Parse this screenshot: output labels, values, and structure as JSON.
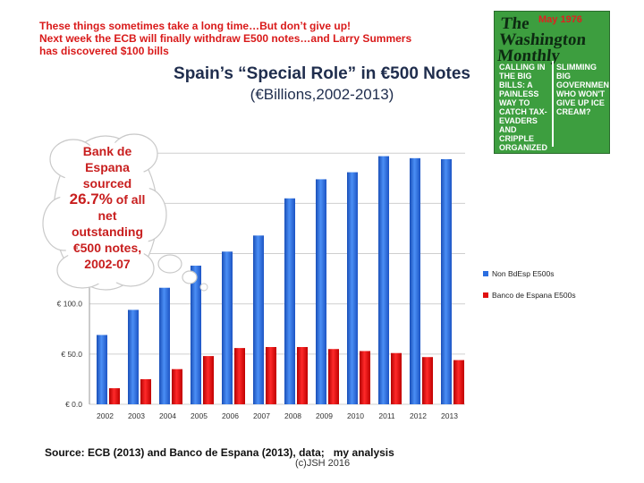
{
  "note": {
    "line1": "These things sometimes take a long time…But don’t give up!",
    "line2": "Next week the ECB will finally withdraw E500 notes…and Larry Summers",
    "line3": "has discovered $100 bills"
  },
  "magazine": {
    "title_line1": "The",
    "title_line2": "Washington",
    "title_line3": "Monthly",
    "date": "May 1976",
    "left_text": "Calling in the big bills: a painless way to catch tax-evaders and cripple organized crime",
    "right_text": "Slimming big government. Who won't give up ice cream?"
  },
  "callout": {
    "line1": "Bank de",
    "line2": "Espana",
    "line3": "sourced",
    "highlight": "26.7%",
    "line4": "of all",
    "line5": "net",
    "line6": "outstanding",
    "line7": "€500 notes,",
    "line8": "2002-07"
  },
  "source": "Source: ECB (2013) and Banco de Espana (2013), data;   my analysis",
  "copyright": "(c)JSH 2016",
  "colors": {
    "blue": "#2b6ee0",
    "red": "#e01010",
    "note_red": "#d91a1a"
  },
  "chart_data": {
    "type": "bar",
    "title": "Spain’s “Special Role” in €500 Notes",
    "subtitle": "(€Billions,2002-2013)",
    "categories": [
      "2002",
      "2003",
      "2004",
      "2005",
      "2006",
      "2007",
      "2008",
      "2009",
      "2010",
      "2011",
      "2012",
      "2013"
    ],
    "series": [
      {
        "name": "Non BdEsp E500s",
        "color": "#2b6ee0",
        "values": [
          69,
          94,
          116,
          138,
          152,
          168,
          205,
          224,
          231,
          247,
          245,
          244
        ]
      },
      {
        "name": "Banco de Espana E500s",
        "color": "#e01010",
        "values": [
          16,
          25,
          35,
          48,
          56,
          57,
          57,
          55,
          53,
          51,
          47,
          44
        ]
      }
    ],
    "y_ticks": [
      "€ 0.0",
      "€ 50.0",
      "€ 100.0"
    ],
    "y_tick_values": [
      0,
      50,
      100
    ],
    "ylim": [
      0,
      260
    ],
    "legend_position": "right"
  }
}
